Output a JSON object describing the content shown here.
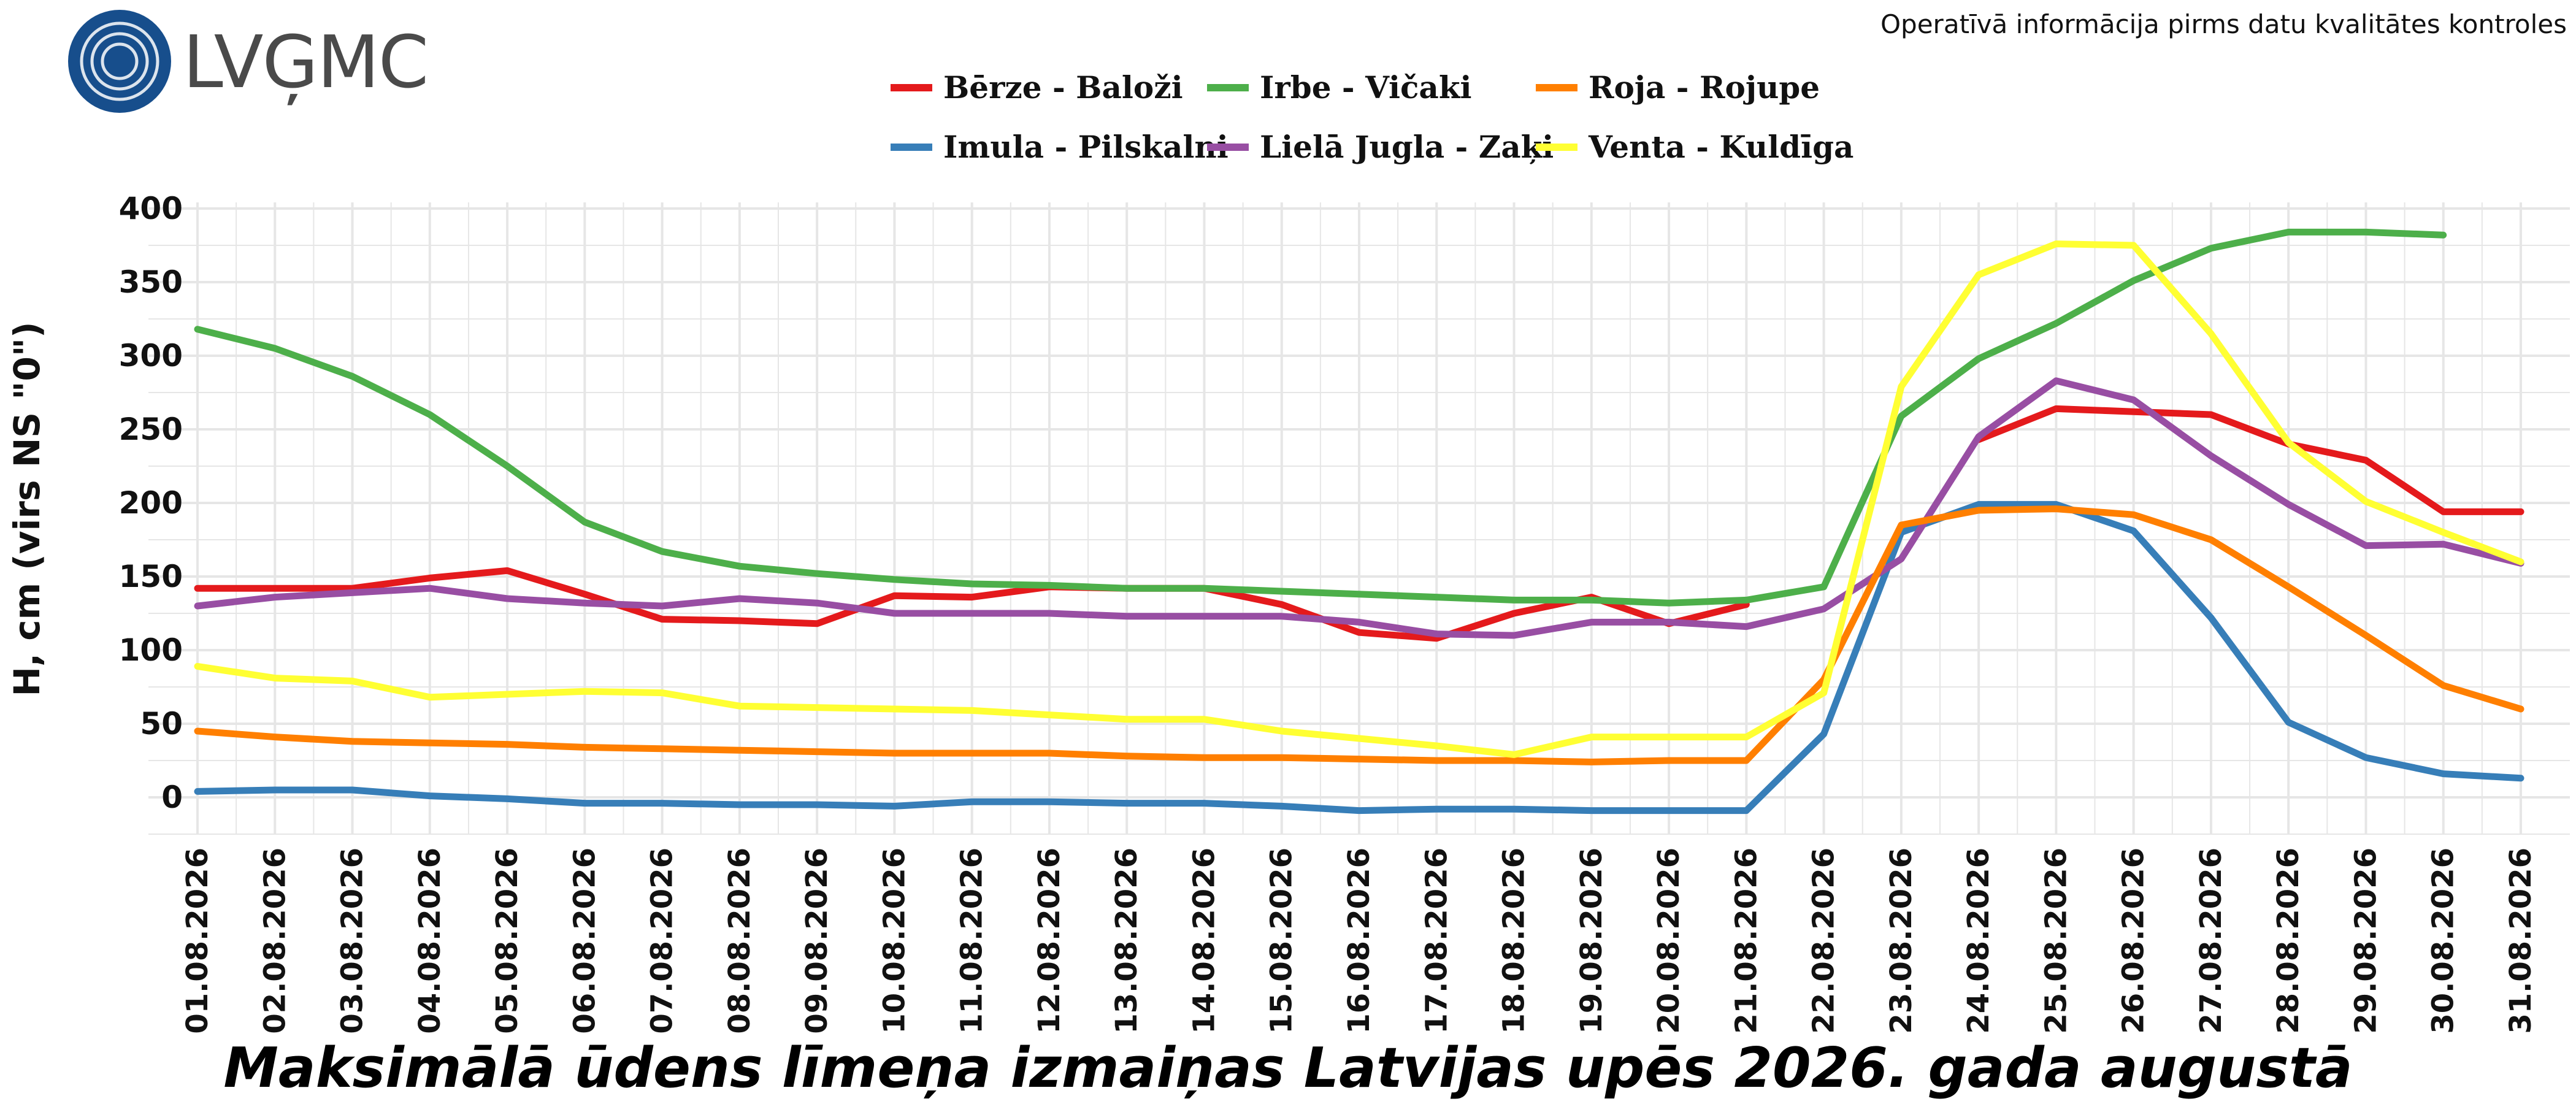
{
  "header": {
    "logo_text": "LVĢMC",
    "notice": "Operatīvā informācija pirms datu kvalitātes kontroles"
  },
  "colors": {
    "logo": "#174e8c",
    "grid": "#e6e6e6"
  },
  "chart_data": {
    "type": "line",
    "title": "Maksimālā ūdens līmeņa izmaiņas Latvijas upēs 2026. gada augustā",
    "ylabel": "H, cm (virs NS \"0\")",
    "xlabel": "",
    "ylim": [
      -25,
      400
    ],
    "yticks": [
      0,
      50,
      100,
      150,
      200,
      250,
      300,
      350,
      400
    ],
    "grid": true,
    "legend_position": "top-center",
    "x": [
      "01.08.2026",
      "02.08.2026",
      "03.08.2026",
      "04.08.2026",
      "05.08.2026",
      "06.08.2026",
      "07.08.2026",
      "08.08.2026",
      "09.08.2026",
      "10.08.2026",
      "11.08.2026",
      "12.08.2026",
      "13.08.2026",
      "14.08.2026",
      "15.08.2026",
      "16.08.2026",
      "17.08.2026",
      "18.08.2026",
      "19.08.2026",
      "20.08.2026",
      "21.08.2026",
      "22.08.2026",
      "23.08.2026",
      "24.08.2026",
      "25.08.2026",
      "26.08.2026",
      "27.08.2026",
      "28.08.2026",
      "29.08.2026",
      "30.08.2026",
      "31.08.2026"
    ],
    "series": [
      {
        "name": "Bērze - Baloži",
        "color": "#e41a1c",
        "values": [
          142,
          142,
          142,
          149,
          154,
          138,
          121,
          120,
          118,
          137,
          136,
          143,
          142,
          142,
          131,
          112,
          108,
          125,
          136,
          118,
          131,
          null,
          null,
          243,
          264,
          262,
          260,
          240,
          229,
          194,
          194
        ]
      },
      {
        "name": "Imula - Pilskalni",
        "color": "#377eb8",
        "values": [
          4,
          5,
          5,
          1,
          -1,
          -4,
          -4,
          -5,
          -5,
          -6,
          -3,
          -3,
          -4,
          -4,
          -6,
          -9,
          -8,
          -8,
          -9,
          -9,
          -9,
          43,
          180,
          199,
          199,
          181,
          122,
          51,
          27,
          16,
          13
        ]
      },
      {
        "name": "Irbe - Vičaki",
        "color": "#4daf4a",
        "values": [
          318,
          305,
          286,
          260,
          225,
          187,
          167,
          157,
          152,
          148,
          145,
          144,
          142,
          142,
          140,
          138,
          136,
          134,
          134,
          132,
          134,
          143,
          259,
          298,
          322,
          351,
          373,
          384,
          384,
          382,
          null
        ]
      },
      {
        "name": "Lielā Jugla - Zaķi",
        "color": "#984ea3",
        "values": [
          130,
          136,
          139,
          142,
          135,
          132,
          130,
          135,
          132,
          125,
          125,
          125,
          123,
          123,
          123,
          119,
          111,
          110,
          119,
          119,
          116,
          128,
          162,
          245,
          283,
          270,
          232,
          199,
          171,
          172,
          159
        ]
      },
      {
        "name": "Roja - Rojupe",
        "color": "#ff7f00",
        "values": [
          45,
          41,
          38,
          37,
          36,
          34,
          33,
          32,
          31,
          30,
          30,
          30,
          28,
          27,
          27,
          26,
          25,
          25,
          24,
          25,
          25,
          80,
          185,
          195,
          196,
          192,
          175,
          143,
          110,
          76,
          60
        ]
      },
      {
        "name": "Venta - Kuldīga",
        "color": "#ffff33",
        "values": [
          89,
          81,
          79,
          68,
          70,
          72,
          71,
          62,
          61,
          60,
          59,
          56,
          53,
          53,
          45,
          40,
          35,
          29,
          41,
          41,
          41,
          71,
          279,
          355,
          376,
          375,
          315,
          241,
          201,
          180,
          160
        ]
      }
    ]
  }
}
